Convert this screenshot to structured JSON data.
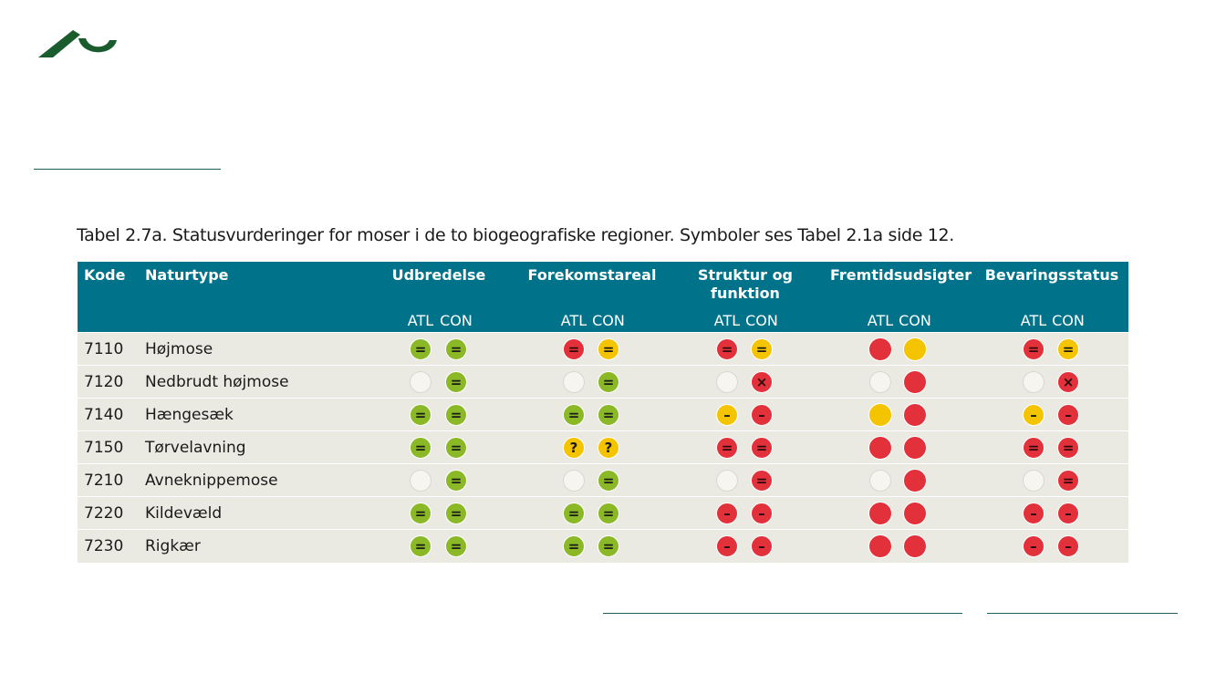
{
  "caption": "Tabel 2.7a. Statusvurderinger for moser i de to biogeografiske regioner. Symboler ses Tabel 2.1a side 12.",
  "colors": {
    "header_bg": "#00738a",
    "row_bg": "#ebeae2",
    "green": "#8ab827",
    "yellow": "#f5c400",
    "red": "#e3313b",
    "logo": "#1a5c2e"
  },
  "table": {
    "headers": {
      "code": "Kode",
      "type": "Naturtype",
      "groups": [
        "Udbredelse",
        "Forekomstareal",
        "Struktur og\nfunktion",
        "Fremtidsudsigter",
        "Bevaringsstatus"
      ],
      "atl": "ATL",
      "con": "CON"
    },
    "rows": [
      {
        "code": "7110",
        "name": "Højmose",
        "symbols": [
          [
            "green",
            "="
          ],
          [
            "green",
            "="
          ],
          [
            "red",
            "="
          ],
          [
            "yellow",
            "="
          ],
          [
            "red",
            "="
          ],
          [
            "yellow",
            "="
          ],
          [
            "red",
            ""
          ],
          [
            "yellow",
            ""
          ],
          [
            "red",
            "="
          ],
          [
            "yellow",
            "="
          ]
        ]
      },
      {
        "code": "7120",
        "name": "Nedbrudt højmose",
        "symbols": [
          [
            "empty",
            ""
          ],
          [
            "green",
            "="
          ],
          [
            "empty",
            ""
          ],
          [
            "green",
            "="
          ],
          [
            "empty",
            ""
          ],
          [
            "red",
            "×"
          ],
          [
            "empty",
            ""
          ],
          [
            "red",
            ""
          ],
          [
            "empty",
            ""
          ],
          [
            "red",
            "×"
          ]
        ]
      },
      {
        "code": "7140",
        "name": "Hængesæk",
        "symbols": [
          [
            "green",
            "="
          ],
          [
            "green",
            "="
          ],
          [
            "green",
            "="
          ],
          [
            "green",
            "="
          ],
          [
            "yellow",
            "–"
          ],
          [
            "red",
            "–"
          ],
          [
            "yellow",
            ""
          ],
          [
            "red",
            ""
          ],
          [
            "yellow",
            "–"
          ],
          [
            "red",
            "–"
          ]
        ]
      },
      {
        "code": "7150",
        "name": "Tørvelavning",
        "symbols": [
          [
            "green",
            "="
          ],
          [
            "green",
            "="
          ],
          [
            "yellow",
            "?"
          ],
          [
            "yellow",
            "?"
          ],
          [
            "red",
            "="
          ],
          [
            "red",
            "="
          ],
          [
            "red",
            ""
          ],
          [
            "red",
            ""
          ],
          [
            "red",
            "="
          ],
          [
            "red",
            "="
          ]
        ]
      },
      {
        "code": "7210",
        "name": "Avneknippemose",
        "symbols": [
          [
            "empty",
            ""
          ],
          [
            "green",
            "="
          ],
          [
            "empty",
            ""
          ],
          [
            "green",
            "="
          ],
          [
            "empty",
            ""
          ],
          [
            "red",
            "="
          ],
          [
            "empty",
            ""
          ],
          [
            "red",
            ""
          ],
          [
            "empty",
            ""
          ],
          [
            "red",
            "="
          ]
        ]
      },
      {
        "code": "7220",
        "name": "Kildevæld",
        "symbols": [
          [
            "green",
            "="
          ],
          [
            "green",
            "="
          ],
          [
            "green",
            "="
          ],
          [
            "green",
            "="
          ],
          [
            "red",
            "–"
          ],
          [
            "red",
            "–"
          ],
          [
            "red",
            ""
          ],
          [
            "red",
            ""
          ],
          [
            "red",
            "–"
          ],
          [
            "red",
            "–"
          ]
        ]
      },
      {
        "code": "7230",
        "name": "Rigkær",
        "symbols": [
          [
            "green",
            "="
          ],
          [
            "green",
            "="
          ],
          [
            "green",
            "="
          ],
          [
            "green",
            "="
          ],
          [
            "red",
            "–"
          ],
          [
            "red",
            "–"
          ],
          [
            "red",
            ""
          ],
          [
            "red",
            ""
          ],
          [
            "red",
            "–"
          ],
          [
            "red",
            "–"
          ]
        ]
      }
    ]
  }
}
